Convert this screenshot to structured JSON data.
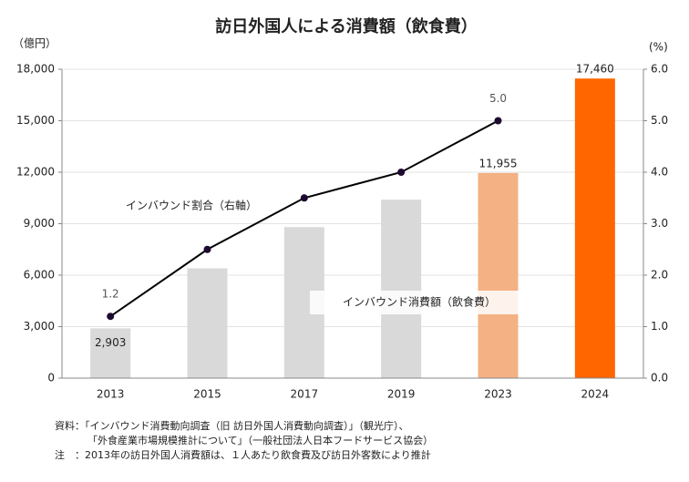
{
  "chart_data": {
    "type": "bar-line",
    "title": "訪日外国人による消費額（飲食費）",
    "y_unit": "（億円）",
    "y2_unit": "(%)",
    "categories": [
      "2013",
      "2015",
      "2017",
      "2019",
      "2023",
      "2024"
    ],
    "series": [
      {
        "name": "インバウンド消費額（飲食費）",
        "type": "bar",
        "colors": [
          "#d9d9d9",
          "#d9d9d9",
          "#d9d9d9",
          "#d9d9d9",
          "#f4b183",
          "#ff6600"
        ],
        "values": [
          2903,
          6400,
          8800,
          10400,
          11955,
          17460
        ],
        "value_labels": [
          "2,903",
          null,
          null,
          null,
          "11,955",
          "17,460"
        ]
      },
      {
        "name": "インバウンド割合（右軸）",
        "type": "line",
        "axis": "y2",
        "color": "#000000",
        "marker_color": "#1e0a30",
        "values": [
          1.2,
          2.5,
          3.5,
          4.0,
          5.0,
          null
        ],
        "value_labels": [
          "1.2",
          null,
          null,
          null,
          "5.0",
          null
        ]
      }
    ],
    "ylim": [
      0,
      18000
    ],
    "yticks": [
      0,
      {
        "value": 3000,
        "label": "3,000"
      },
      {
        "value": 6000,
        "label": "6,000"
      },
      {
        "value": 9000,
        "label": "9,000"
      },
      {
        "value": 12000,
        "label": "12,000"
      },
      {
        "value": 15000,
        "label": "15,000"
      },
      {
        "value": 18000,
        "label": "18,000"
      }
    ],
    "y2lim": [
      0,
      6
    ],
    "y2ticks": [
      {
        "value": 0,
        "label": "0.0"
      },
      {
        "value": 1,
        "label": "1.0"
      },
      {
        "value": 2,
        "label": "2.0"
      },
      {
        "value": 3,
        "label": "3.0"
      },
      {
        "value": 4,
        "label": "4.0"
      },
      {
        "value": 5,
        "label": "5.0"
      },
      {
        "value": 6,
        "label": "6.0"
      }
    ],
    "grid": true,
    "notes": [
      "資料：「インバウンド消費動向調査（旧 訪日外国人消費動向調査）」（観光庁）、",
      "「外食産業市場規模推計について」（一般社団法人日本フードサービス協会）",
      "注　：2013年の訪日外国人消費額は、１人あたり飲食費及び訪日外客数により推計"
    ]
  }
}
